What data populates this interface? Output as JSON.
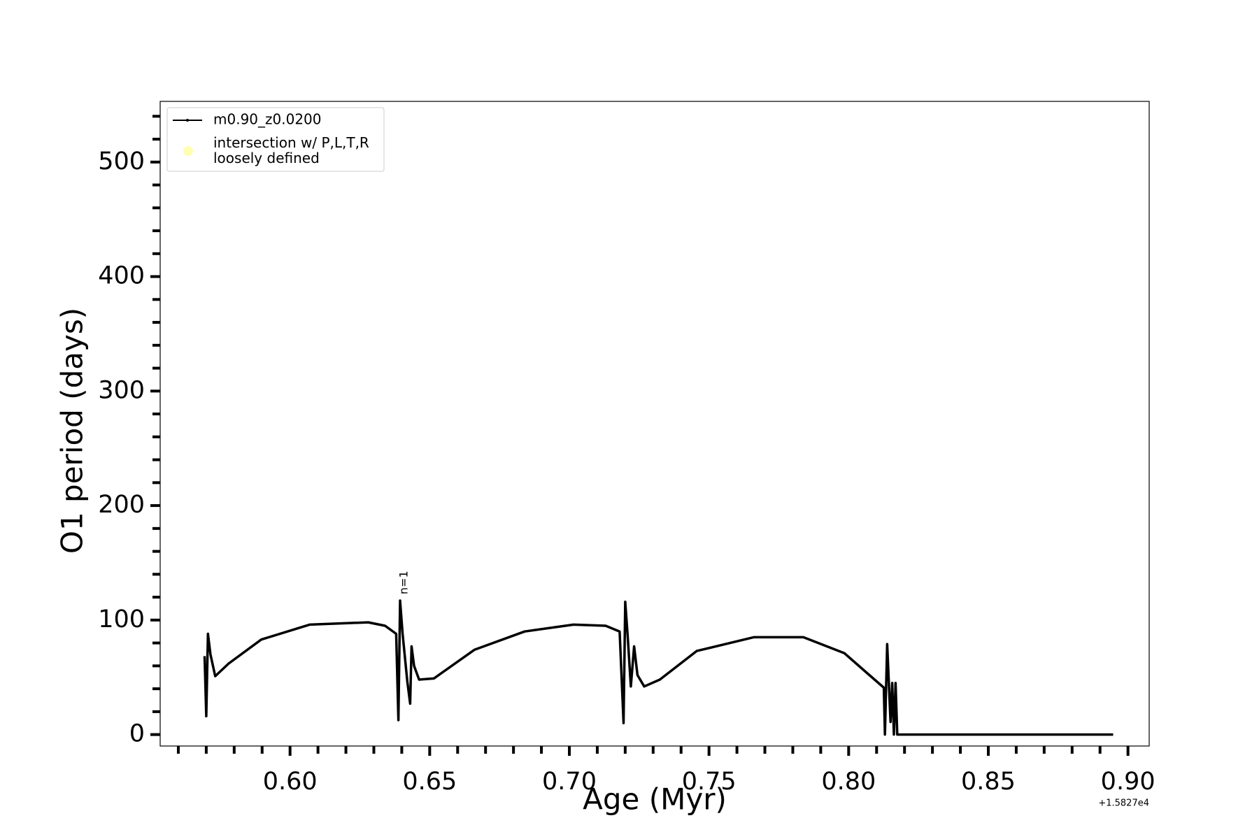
{
  "chart_data": {
    "type": "line",
    "xlabel": "Age (Myr)",
    "ylabel": "O1 period (days)",
    "x_offset_label": "+1.5827e4",
    "annotation": {
      "text": "n=1",
      "x": 0.6394,
      "y": 120
    },
    "series": [
      {
        "name": "m0.90_z0.0200",
        "color": "#000000",
        "x": [
          0.5694,
          0.57,
          0.5706,
          0.5715,
          0.5732,
          0.578,
          0.5897,
          0.607,
          0.628,
          0.634,
          0.638,
          0.6388,
          0.6394,
          0.6403,
          0.642,
          0.643,
          0.6435,
          0.6444,
          0.6462,
          0.6515,
          0.666,
          0.684,
          0.7015,
          0.713,
          0.718,
          0.7194,
          0.72,
          0.7209,
          0.722,
          0.7232,
          0.7244,
          0.7268,
          0.7324,
          0.7456,
          0.766,
          0.7838,
          0.7985,
          0.8074,
          0.8126,
          0.813,
          0.8138,
          0.815,
          0.8156,
          0.8162,
          0.8168,
          0.8174,
          0.8485,
          0.8947
        ],
        "values": [
          68.5,
          16,
          88,
          70,
          51,
          62,
          83,
          96,
          98,
          95,
          88,
          12.6,
          117,
          88,
          46,
          27,
          77,
          60,
          48,
          49,
          74,
          90,
          96,
          95,
          90,
          10,
          116,
          85,
          42,
          77,
          52,
          42,
          48,
          73,
          85,
          85,
          71,
          52,
          41,
          0,
          79,
          11,
          45,
          0,
          45,
          0,
          0,
          0
        ]
      },
      {
        "name": "intersection w/ P,L,T,R\nloosely defined",
        "color": "#ffffb2",
        "marker": "circle",
        "x": [],
        "values": []
      }
    ],
    "xlim": [
      0.5535,
      0.9076
    ],
    "ylim": [
      -10,
      553
    ],
    "xticks": [
      {
        "value": 0.6,
        "label": "0.60"
      },
      {
        "value": 0.65,
        "label": "0.65"
      },
      {
        "value": 0.7,
        "label": "0.70"
      },
      {
        "value": 0.75,
        "label": "0.75"
      },
      {
        "value": 0.8,
        "label": "0.80"
      },
      {
        "value": 0.85,
        "label": "0.85"
      },
      {
        "value": 0.9,
        "label": "0.90"
      }
    ],
    "xminorticks": [
      0.56,
      0.57,
      0.58,
      0.59,
      0.61,
      0.62,
      0.63,
      0.64,
      0.66,
      0.67,
      0.68,
      0.69,
      0.71,
      0.72,
      0.73,
      0.74,
      0.76,
      0.77,
      0.78,
      0.79,
      0.81,
      0.82,
      0.83,
      0.84,
      0.86,
      0.87,
      0.88,
      0.89
    ],
    "yticks": [
      0,
      100,
      200,
      300,
      400,
      500
    ],
    "yminorticks": [
      20,
      40,
      60,
      80,
      120,
      140,
      160,
      180,
      220,
      240,
      260,
      280,
      320,
      340,
      360,
      380,
      420,
      440,
      460,
      480,
      520,
      540
    ],
    "grid": false,
    "legend": "upper left"
  }
}
